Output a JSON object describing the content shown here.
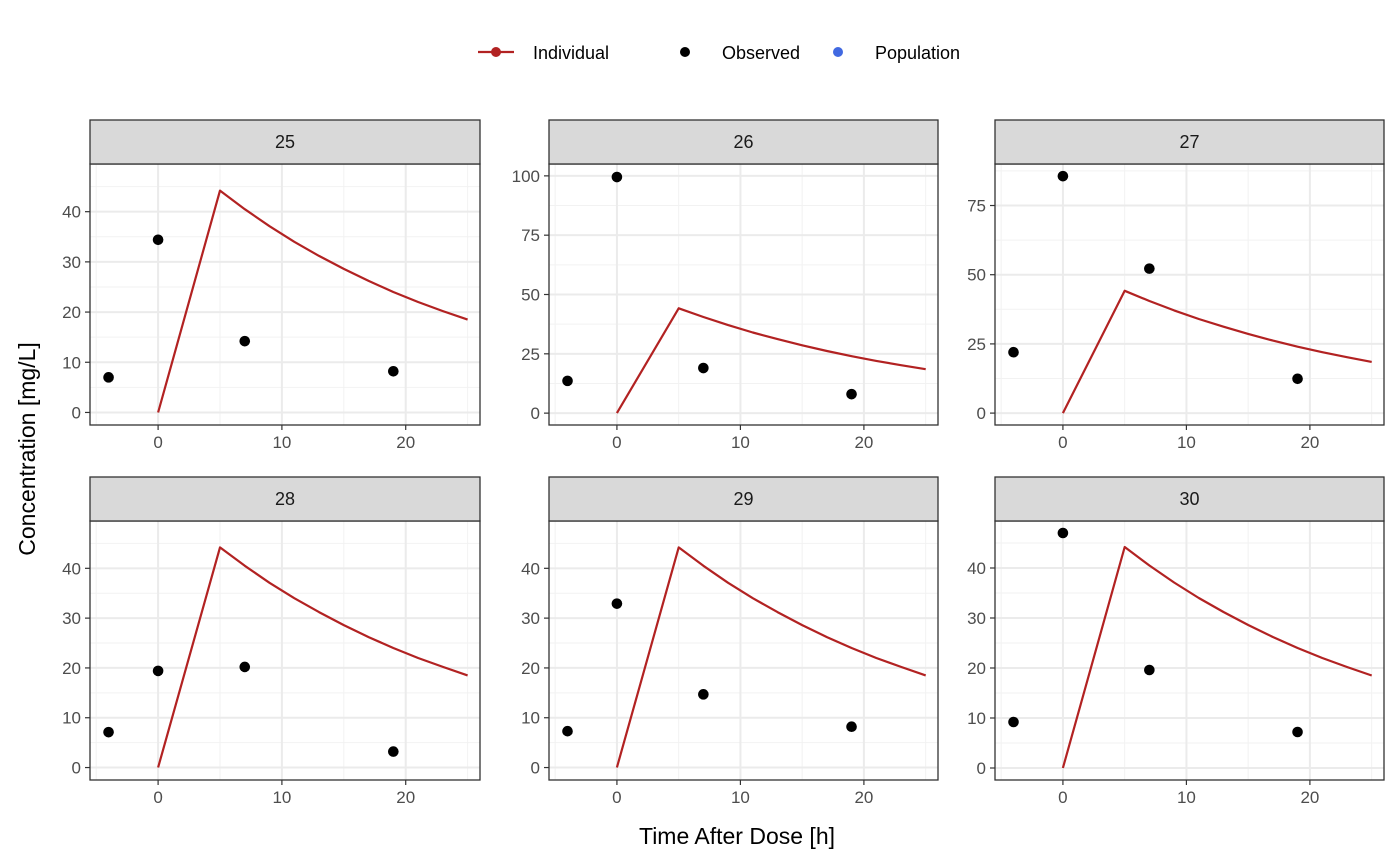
{
  "chart_data": {
    "type": "line",
    "xlabel": "Time After Dose [h]",
    "ylabel": "Concentration [mg/L]",
    "legend": {
      "placement": "top",
      "entries": [
        {
          "name": "Individual",
          "color": "#B22222",
          "kind": "line-point"
        },
        {
          "name": "Observed",
          "color": "#000000",
          "kind": "point"
        },
        {
          "name": "Population",
          "color": "#4169E1",
          "kind": "point"
        }
      ]
    },
    "grid": true,
    "xlim": [
      -5.5,
      26
    ],
    "xticks": [
      0,
      10,
      20
    ],
    "individual_curve": {
      "x": [
        0,
        5,
        7,
        9,
        11,
        13,
        15,
        17,
        19,
        21,
        23,
        25
      ],
      "y": [
        0,
        44.2,
        40.5,
        37.1,
        34.0,
        31.2,
        28.6,
        26.2,
        24.0,
        22.0,
        20.2,
        18.5
      ]
    },
    "panels": [
      {
        "id": "25",
        "ylim": [
          -2.5,
          49.5
        ],
        "yticks": [
          0,
          10,
          20,
          30,
          40
        ],
        "observed": {
          "x": [
            -4,
            0,
            7,
            19
          ],
          "y": [
            7,
            34.4,
            14.2,
            8.2
          ]
        }
      },
      {
        "id": "26",
        "ylim": [
          -5,
          105
        ],
        "yticks": [
          0,
          25,
          50,
          75,
          100
        ],
        "observed": {
          "x": [
            -4,
            0,
            7,
            19
          ],
          "y": [
            13.6,
            99.5,
            19,
            8
          ]
        }
      },
      {
        "id": "27",
        "ylim": [
          -4.3,
          90
        ],
        "yticks": [
          0,
          25,
          50,
          75
        ],
        "observed": {
          "x": [
            -4,
            0,
            7,
            19
          ],
          "y": [
            22,
            85.6,
            52.2,
            12.4
          ]
        }
      },
      {
        "id": "28",
        "ylim": [
          -2.5,
          49.5
        ],
        "yticks": [
          0,
          10,
          20,
          30,
          40
        ],
        "observed": {
          "x": [
            -4,
            0,
            7,
            19
          ],
          "y": [
            7.1,
            19.4,
            20.2,
            3.2
          ]
        }
      },
      {
        "id": "29",
        "ylim": [
          -2.5,
          49.5
        ],
        "yticks": [
          0,
          10,
          20,
          30,
          40
        ],
        "observed": {
          "x": [
            -4,
            0,
            7,
            19
          ],
          "y": [
            7.3,
            32.9,
            14.7,
            8.2
          ]
        }
      },
      {
        "id": "30",
        "ylim": [
          -2.4,
          49.4
        ],
        "yticks": [
          0,
          10,
          20,
          30,
          40
        ],
        "observed": {
          "x": [
            -4,
            0,
            7,
            19
          ],
          "y": [
            9.2,
            47,
            19.6,
            7.2
          ]
        }
      }
    ]
  }
}
